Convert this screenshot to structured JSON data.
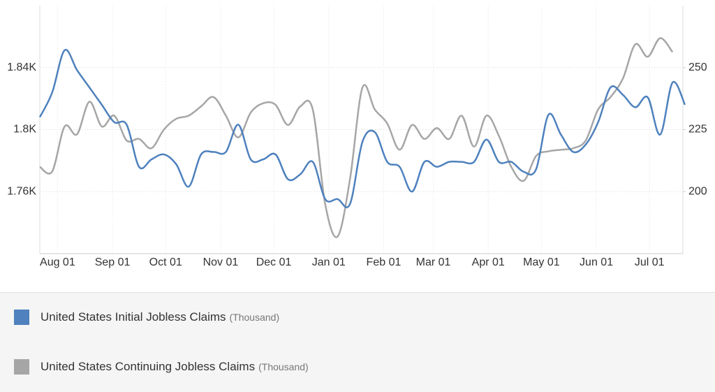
{
  "chart_data": {
    "type": "line",
    "x": [
      0,
      7,
      14,
      21,
      28,
      35,
      42,
      49,
      56,
      63,
      70,
      77,
      84,
      91,
      98,
      105,
      112,
      119,
      126,
      133,
      140,
      147,
      154,
      161,
      168,
      175,
      182,
      189,
      196,
      203,
      210,
      217,
      224,
      231,
      238,
      245,
      252,
      259,
      266,
      273,
      280,
      287,
      294,
      301,
      308,
      315,
      322,
      329,
      336,
      343,
      350,
      357,
      364
    ],
    "xlim": [
      0,
      364
    ],
    "xticks": [
      {
        "value": 10,
        "label": "Aug 01"
      },
      {
        "value": 41,
        "label": "Sep 01"
      },
      {
        "value": 71,
        "label": "Oct 01"
      },
      {
        "value": 102,
        "label": "Nov 01"
      },
      {
        "value": 132,
        "label": "Dec 01"
      },
      {
        "value": 163,
        "label": "Jan 01"
      },
      {
        "value": 194,
        "label": "Feb 01"
      },
      {
        "value": 222,
        "label": "Mar 01"
      },
      {
        "value": 253,
        "label": "Apr 01"
      },
      {
        "value": 283,
        "label": "May 01"
      },
      {
        "value": 314,
        "label": "Jun 01"
      },
      {
        "value": 344,
        "label": "Jul 01"
      }
    ],
    "ylim": [
      1720,
      1880
    ],
    "yticks": [
      {
        "value": 1760,
        "label": "1.76K"
      },
      {
        "value": 1800,
        "label": "1.8K"
      },
      {
        "value": 1840,
        "label": "1.84K"
      }
    ],
    "y2lim": [
      175,
      275
    ],
    "y2ticks": [
      200,
      225,
      250
    ],
    "grid": true,
    "series": [
      {
        "name": "United States Initial Jobless Claims",
        "unit": "(Thousand)",
        "color": "#4e81bd",
        "axis": "y2",
        "values": [
          230,
          240,
          257,
          249,
          242,
          235,
          228,
          227,
          210,
          213,
          215,
          211,
          202,
          215,
          216,
          216,
          227,
          213,
          213,
          215,
          205,
          207,
          212,
          197,
          197,
          195,
          220,
          224,
          212,
          210,
          200,
          212,
          210,
          212,
          212,
          212,
          221,
          212,
          212,
          208,
          209,
          231,
          223,
          216,
          219,
          228,
          242,
          239,
          234,
          238,
          223,
          244,
          235
        ]
      },
      {
        "name": "United States Continuing Jobless Claims",
        "unit": "(Thousand)",
        "color": "#a6a6a6",
        "values": [
          1776,
          1773,
          1802,
          1797,
          1818,
          1802,
          1809,
          1793,
          1794,
          1788,
          1800,
          1807,
          1809,
          1815,
          1821,
          1809,
          1795,
          1811,
          1817,
          1816,
          1803,
          1815,
          1813,
          1752,
          1731,
          1768,
          1827,
          1813,
          1804,
          1787,
          1803,
          1794,
          1801,
          1794,
          1809,
          1789,
          1809,
          1796,
          1776,
          1767,
          1783,
          1786,
          1787,
          1788,
          1793,
          1813,
          1821,
          1833,
          1855,
          1847,
          1859,
          1850,
          null
        ]
      }
    ]
  }
}
